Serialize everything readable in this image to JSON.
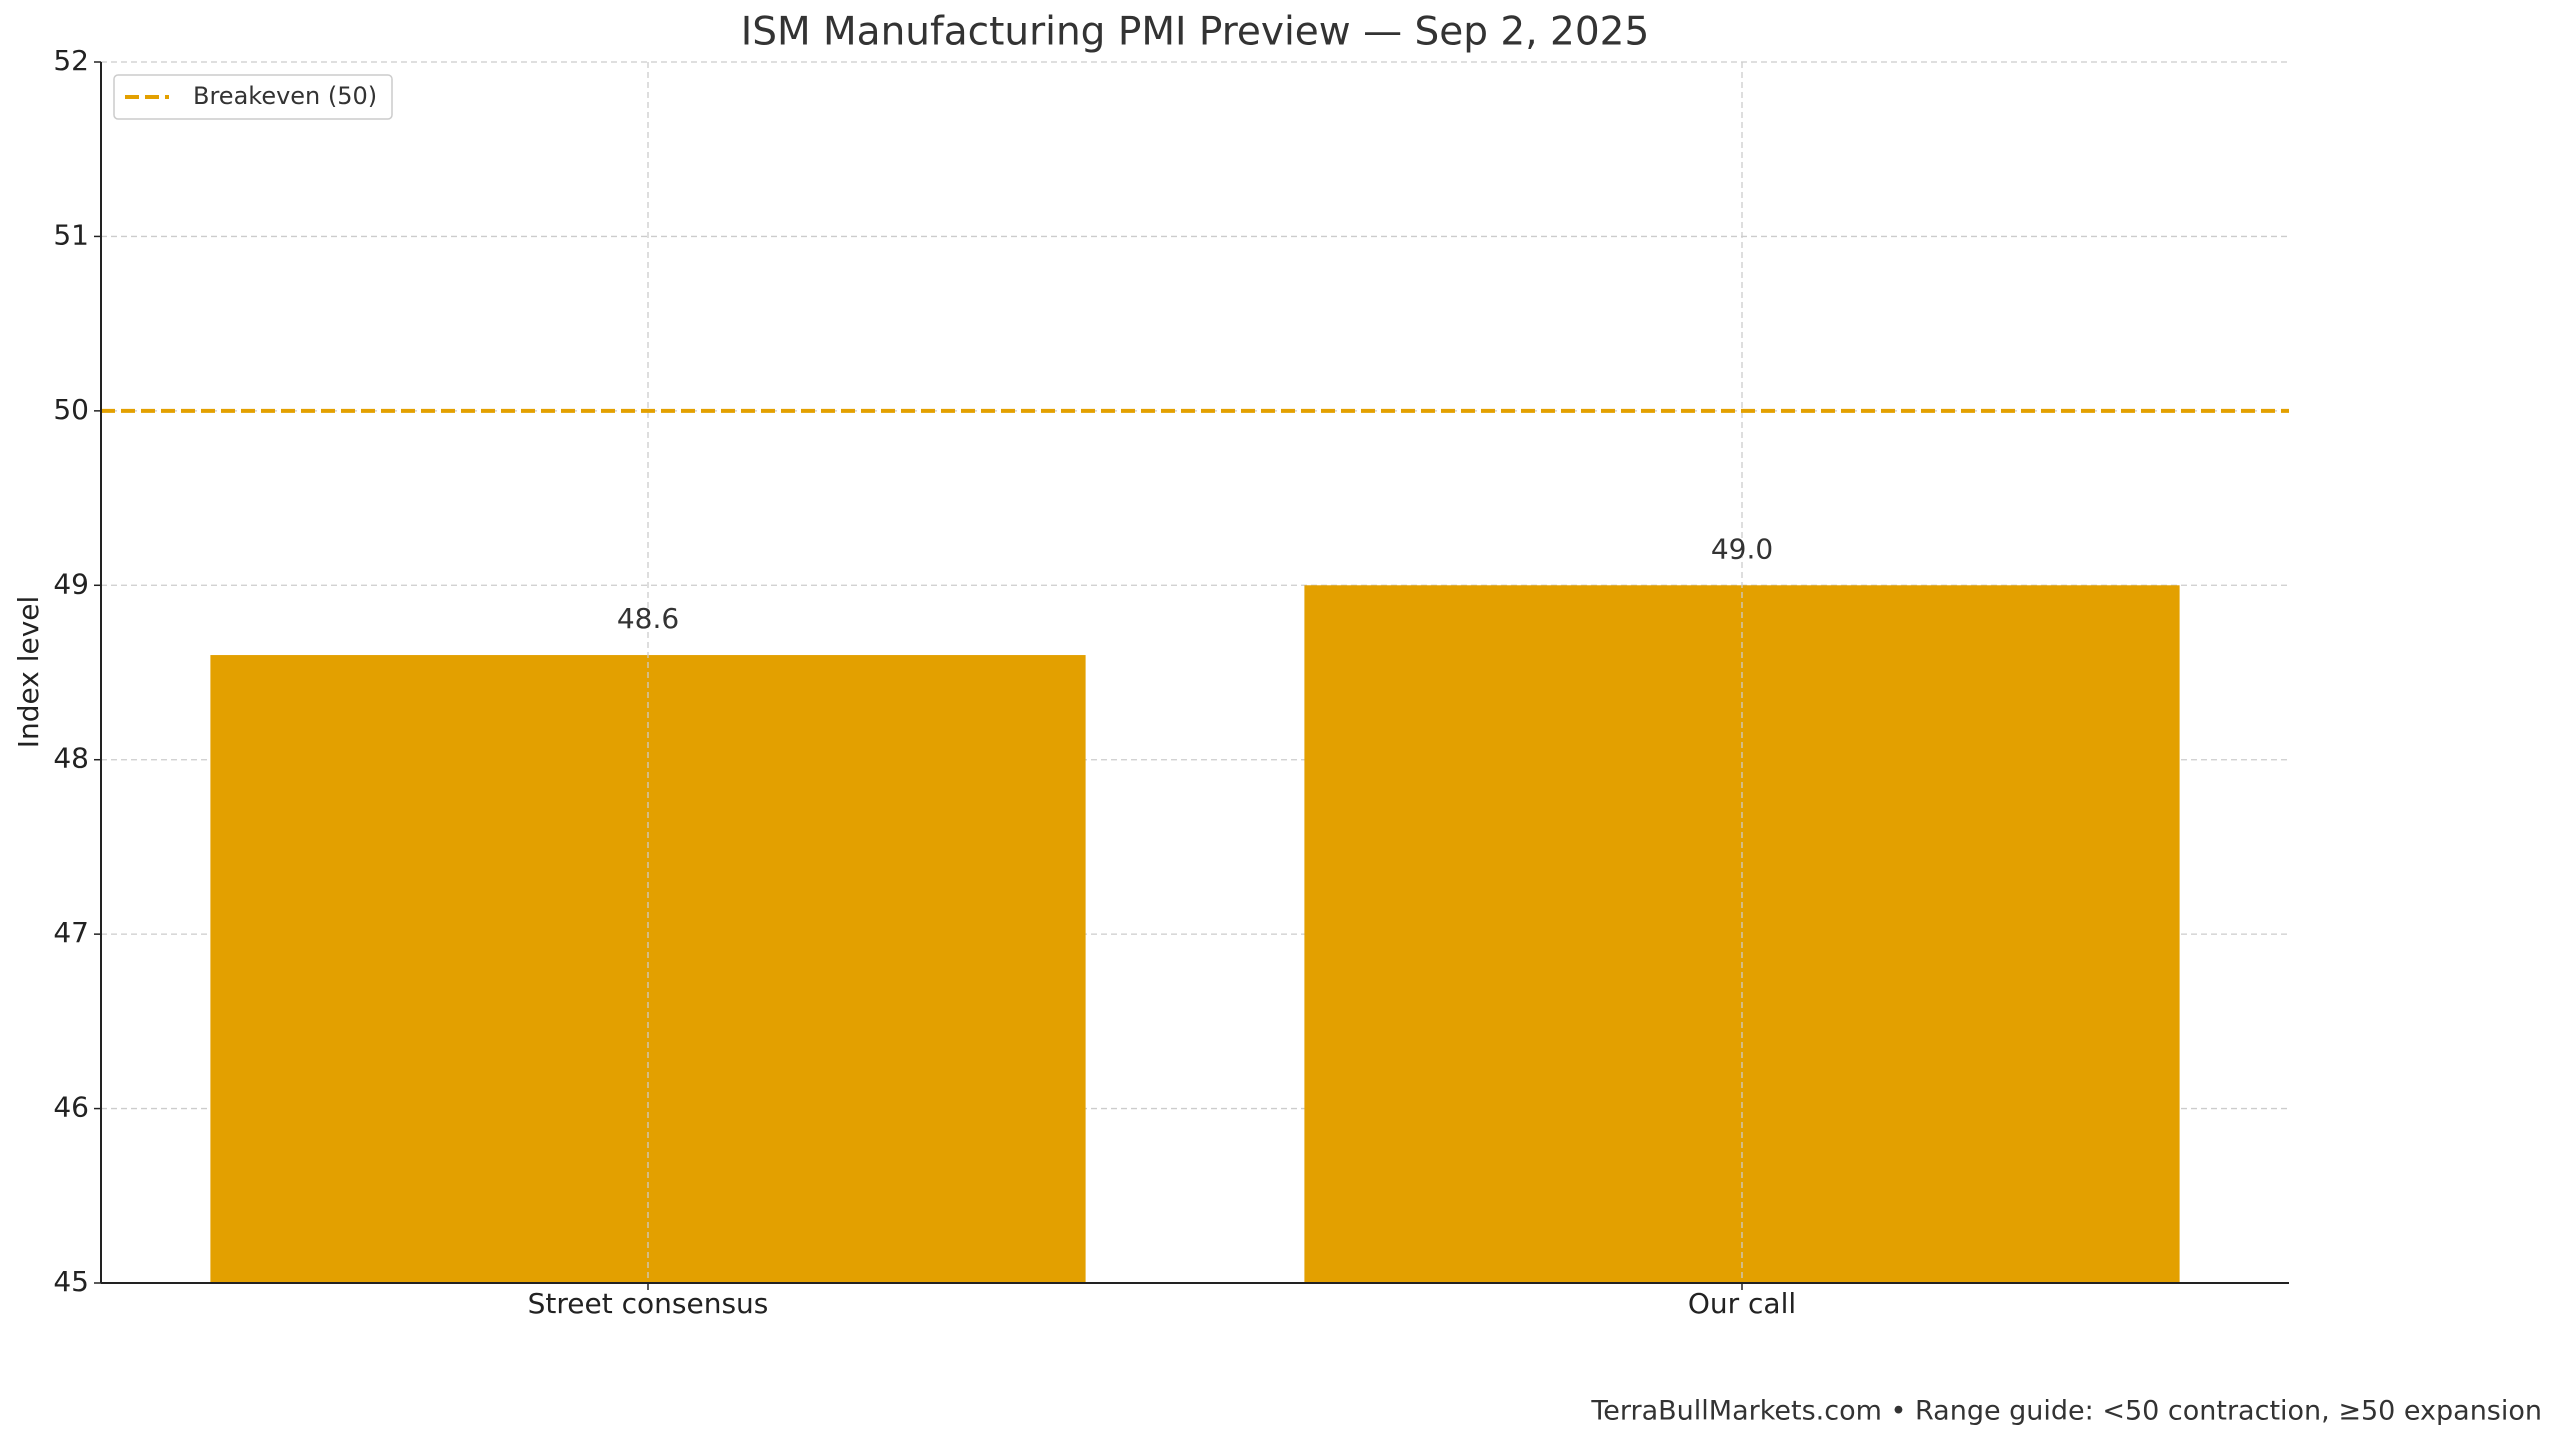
{
  "chart_data": {
    "type": "bar",
    "title": "ISM Manufacturing PMI Preview — Sep 2, 2025",
    "ylabel": "Index level",
    "categories": [
      "Street consensus",
      "Our call"
    ],
    "values": [
      48.6,
      49.0
    ],
    "value_labels": [
      "48.6",
      "49.0"
    ],
    "color": "#e3a000",
    "ylim": [
      45,
      52
    ],
    "yticks": [
      45,
      46,
      47,
      48,
      49,
      50,
      51,
      52
    ],
    "grid": true,
    "reference_line": {
      "value": 50,
      "label": "Breakeven (50)",
      "color": "#e3a000"
    },
    "legend": "upper left",
    "footer": "TerraBullMarkets.com • Range guide: <50 contraction, ≥50 expansion"
  }
}
